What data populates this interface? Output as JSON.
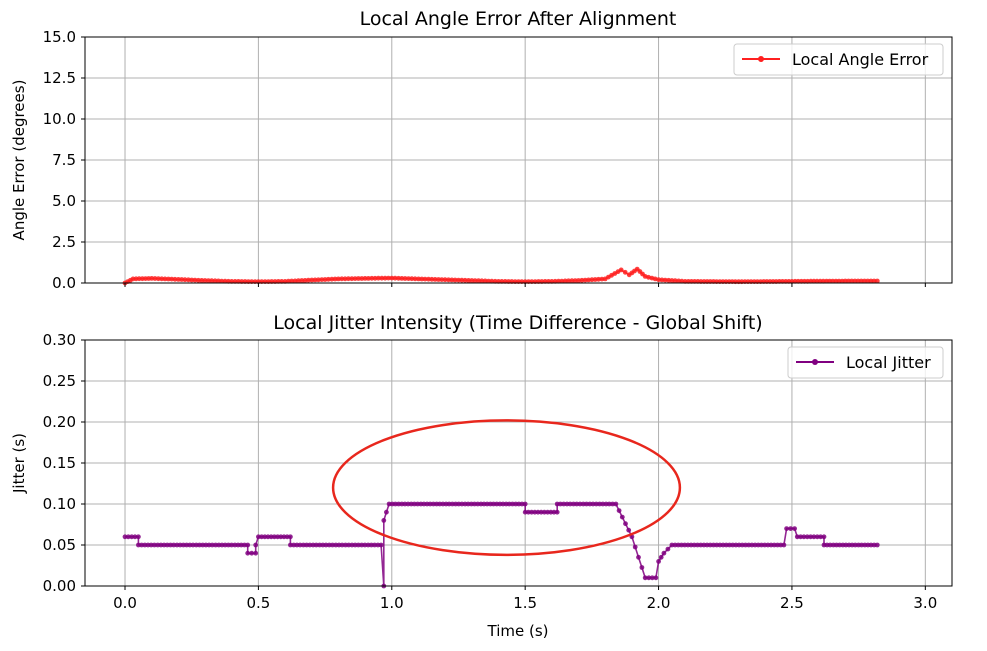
{
  "chart_data": [
    {
      "type": "line",
      "title": "Local Angle Error After Alignment",
      "xlabel": "",
      "ylabel": "Angle Error (degrees)",
      "xlim": [
        -0.15,
        3.1
      ],
      "ylim": [
        0,
        15
      ],
      "xticks": [
        0.0,
        0.5,
        1.0,
        1.5,
        2.0,
        2.5,
        3.0
      ],
      "xtick_labels_shown": false,
      "yticks": [
        "0.0",
        "2.5",
        "5.0",
        "7.5",
        "10.0",
        "12.5",
        "15.0"
      ],
      "grid": true,
      "legend": {
        "placement": "top-right",
        "entries": [
          "Local Angle Error"
        ]
      },
      "series": [
        {
          "name": "Local Angle Error",
          "color": "#ff2020",
          "marker": "circle",
          "keypoints": [
            [
              0.0,
              0.0
            ],
            [
              0.03,
              0.25
            ],
            [
              0.1,
              0.28
            ],
            [
              0.2,
              0.22
            ],
            [
              0.3,
              0.15
            ],
            [
              0.4,
              0.1
            ],
            [
              0.5,
              0.08
            ],
            [
              0.6,
              0.1
            ],
            [
              0.7,
              0.18
            ],
            [
              0.8,
              0.25
            ],
            [
              0.9,
              0.28
            ],
            [
              1.0,
              0.3
            ],
            [
              1.1,
              0.25
            ],
            [
              1.2,
              0.2
            ],
            [
              1.3,
              0.15
            ],
            [
              1.4,
              0.1
            ],
            [
              1.5,
              0.08
            ],
            [
              1.6,
              0.1
            ],
            [
              1.7,
              0.15
            ],
            [
              1.8,
              0.25
            ],
            [
              1.86,
              0.8
            ],
            [
              1.89,
              0.5
            ],
            [
              1.92,
              0.85
            ],
            [
              1.95,
              0.4
            ],
            [
              2.0,
              0.2
            ],
            [
              2.1,
              0.1
            ],
            [
              2.3,
              0.08
            ],
            [
              2.5,
              0.1
            ],
            [
              2.7,
              0.12
            ],
            [
              2.82,
              0.12
            ]
          ]
        }
      ]
    },
    {
      "type": "line",
      "title": "Local Jitter Intensity (Time Difference - Global Shift)",
      "xlabel": "Time (s)",
      "ylabel": "Jitter (s)",
      "xlim": [
        -0.15,
        3.1
      ],
      "ylim": [
        0,
        0.3
      ],
      "xticks": [
        "0.0",
        "0.5",
        "1.0",
        "1.5",
        "2.0",
        "2.5",
        "3.0"
      ],
      "yticks": [
        "0.00",
        "0.05",
        "0.10",
        "0.15",
        "0.20",
        "0.25",
        "0.30"
      ],
      "grid": true,
      "legend": {
        "placement": "top-right",
        "entries": [
          "Local Jitter"
        ]
      },
      "annotation": {
        "shape": "ellipse",
        "color": "#e8271d",
        "center": [
          1.43,
          0.12
        ],
        "radius": [
          0.65,
          0.082
        ]
      },
      "series": [
        {
          "name": "Local Jitter",
          "color": "#800080",
          "marker": "circle",
          "keypoints": [
            [
              0.0,
              0.06
            ],
            [
              0.05,
              0.06
            ],
            [
              0.05,
              0.05
            ],
            [
              0.46,
              0.05
            ],
            [
              0.46,
              0.04
            ],
            [
              0.49,
              0.04
            ],
            [
              0.49,
              0.05
            ],
            [
              0.5,
              0.06
            ],
            [
              0.62,
              0.06
            ],
            [
              0.62,
              0.05
            ],
            [
              0.96,
              0.05
            ],
            [
              0.97,
              0.0
            ],
            [
              0.97,
              0.08
            ],
            [
              0.98,
              0.09
            ],
            [
              0.99,
              0.1
            ],
            [
              1.5,
              0.1
            ],
            [
              1.5,
              0.09
            ],
            [
              1.62,
              0.09
            ],
            [
              1.62,
              0.1
            ],
            [
              1.84,
              0.1
            ],
            [
              1.9,
              0.06
            ],
            [
              1.95,
              0.01
            ],
            [
              1.99,
              0.01
            ],
            [
              2.0,
              0.03
            ],
            [
              2.02,
              0.04
            ],
            [
              2.05,
              0.05
            ],
            [
              2.47,
              0.05
            ],
            [
              2.48,
              0.07
            ],
            [
              2.51,
              0.07
            ],
            [
              2.52,
              0.06
            ],
            [
              2.62,
              0.06
            ],
            [
              2.62,
              0.05
            ],
            [
              2.82,
              0.05
            ]
          ]
        }
      ]
    }
  ]
}
